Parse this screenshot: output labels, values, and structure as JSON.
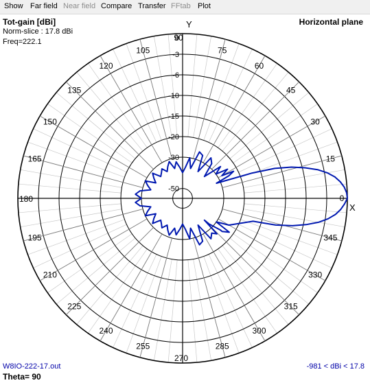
{
  "menu": {
    "items": [
      {
        "label": "Show",
        "enabled": true
      },
      {
        "label": "Far field",
        "enabled": true
      },
      {
        "label": "Near field",
        "enabled": false
      },
      {
        "label": "Compare",
        "enabled": true
      },
      {
        "label": "Transfer",
        "enabled": true
      },
      {
        "label": "FFtab",
        "enabled": false
      },
      {
        "label": "Plot",
        "enabled": true
      }
    ]
  },
  "plot": {
    "title": "Tot-gain [dBi]",
    "norm_slice": "Norm-slice : 17.8 dBi",
    "freq": "Freq=222.1",
    "plane": "Horizontal plane",
    "filename": "W8IO-222-17.out",
    "range": "-981 < dBi < 17.8",
    "theta": "Theta= 90",
    "axis_x": "X",
    "axis_y": "Y",
    "trace_color": "#0018b0"
  },
  "chart_data": {
    "type": "polar",
    "angle_labels": [
      "0",
      "15",
      "30",
      "45",
      "60",
      "75",
      "90",
      "105",
      "120",
      "135",
      "150",
      "165",
      "180",
      "195",
      "210",
      "225",
      "240",
      "255",
      "270",
      "285",
      "300",
      "315",
      "330",
      "345"
    ],
    "radial_labels": [
      "0",
      "-3",
      "-6",
      "-10",
      "-15",
      "-20",
      "-30",
      "-50"
    ],
    "radial_values_db": [
      0,
      -3,
      -6,
      -10,
      -15,
      -20,
      -30,
      -50
    ],
    "series": [
      {
        "azimuth_deg": [
          0,
          2,
          4,
          6,
          8,
          10,
          12,
          14,
          16,
          18,
          20,
          22,
          24,
          26,
          28,
          30,
          33,
          36,
          40,
          45,
          50,
          55,
          60,
          65,
          70,
          75,
          80,
          85,
          90,
          95,
          100,
          105,
          110,
          115,
          120,
          125,
          130,
          135,
          140,
          145,
          150,
          155,
          160,
          165,
          170,
          175,
          180,
          185,
          190,
          195,
          200,
          205,
          210,
          215,
          220,
          225,
          230,
          235,
          240,
          245,
          250,
          255,
          260,
          265,
          270,
          275,
          280,
          285,
          290,
          295,
          300,
          305,
          310,
          315,
          320,
          325,
          330,
          327,
          324,
          320,
          316,
          314,
          342,
          344,
          346,
          348,
          350,
          352,
          354,
          356,
          358
        ],
        "gain_db": [
          0,
          -0.1,
          -0.4,
          -0.9,
          -1.6,
          -2.6,
          -3.9,
          -5.6,
          -8.0,
          -11.5,
          -17.0,
          -26.0,
          -34.0,
          -25.0,
          -22.0,
          -28.0,
          -24.0,
          -30.0,
          -26.0,
          -40.0,
          -28.0,
          -26.0,
          -40.0,
          -27.0,
          -26.0,
          -40.0,
          -30.0,
          -40.0,
          -45.0,
          -40.0,
          -34.0,
          -40.0,
          -32.0,
          -36.0,
          -40.0,
          -35.0,
          -38.0,
          -40.0,
          -32.0,
          -36.0,
          -40.0,
          -30.0,
          -34.0,
          -38.0,
          -29.0,
          -27.0,
          -30.0,
          -27.0,
          -29.0,
          -38.0,
          -34.0,
          -30.0,
          -40.0,
          -36.0,
          -32.0,
          -40.0,
          -38.0,
          -35.0,
          -40.0,
          -36.0,
          -32.0,
          -40.0,
          -34.0,
          -40.0,
          -45.0,
          -40.0,
          -30.0,
          -40.0,
          -26.0,
          -27.0,
          -40.0,
          -26.0,
          -28.0,
          -40.0,
          -26.0,
          -30.0,
          -24.0,
          -28.0,
          -22.0,
          -25.0,
          -34.0,
          -26.0,
          -17.0,
          -11.5,
          -8.0,
          -5.6,
          -3.9,
          -2.6,
          -1.6,
          -0.9,
          -0.4
        ]
      }
    ]
  }
}
